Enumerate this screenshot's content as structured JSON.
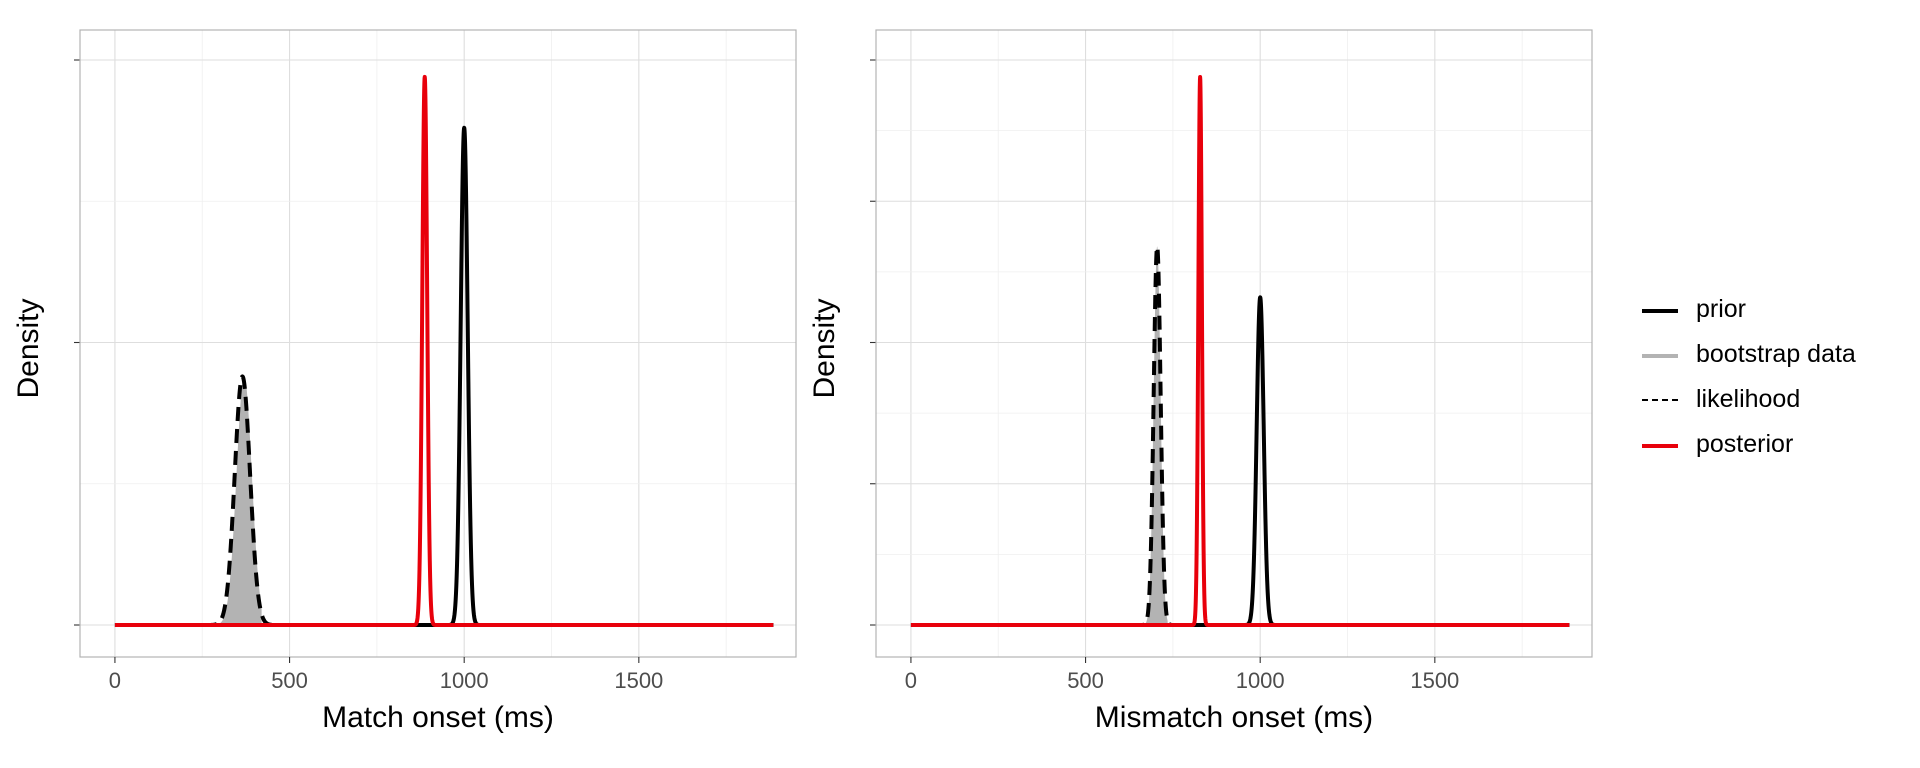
{
  "chart_data": [
    {
      "type": "line",
      "title": "",
      "xlabel": "Match onset (ms)",
      "ylabel": "Density",
      "xlim": [
        -100,
        1950
      ],
      "x_ticks": [
        0,
        500,
        1000,
        1500
      ],
      "x_tick_labels": [
        "0",
        "500",
        "1000",
        "1500"
      ],
      "y_tick_labels": [],
      "grid": true,
      "series": [
        {
          "name": "bootstrap data",
          "style": "area",
          "color": "#b3b3b3",
          "mean": 370,
          "sd": 22,
          "peak": 0.44,
          "xrange": [
            300,
            420
          ]
        },
        {
          "name": "likelihood",
          "style": "dashed",
          "color": "#000000",
          "mean": 365,
          "sd": 22,
          "peak": 0.44
        },
        {
          "name": "prior",
          "style": "solid",
          "color": "#000000",
          "mean": 1000,
          "sd": 10,
          "peak": 0.88
        },
        {
          "name": "posterior",
          "style": "solid",
          "color": "#e8000b",
          "mean": 887,
          "sd": 7,
          "peak": 0.97
        }
      ]
    },
    {
      "type": "line",
      "title": "",
      "xlabel": "Mismatch onset (ms)",
      "ylabel": "Density",
      "xlim": [
        -100,
        1950
      ],
      "x_ticks": [
        0,
        500,
        1000,
        1500
      ],
      "x_tick_labels": [
        "0",
        "500",
        "1000",
        "1500"
      ],
      "y_tick_labels": [],
      "grid": true,
      "series": [
        {
          "name": "bootstrap data",
          "style": "area",
          "color": "#b3b3b3",
          "mean": 705,
          "sd": 10,
          "peak": 0.67,
          "xrange": [
            670,
            735
          ]
        },
        {
          "name": "likelihood",
          "style": "dashed",
          "color": "#000000",
          "mean": 705,
          "sd": 10,
          "peak": 0.67
        },
        {
          "name": "prior",
          "style": "solid",
          "color": "#000000",
          "mean": 1000,
          "sd": 10,
          "peak": 0.58
        },
        {
          "name": "posterior",
          "style": "solid",
          "color": "#e8000b",
          "mean": 828,
          "sd": 5,
          "peak": 0.97
        }
      ]
    }
  ],
  "legend": {
    "placement": "right",
    "items": [
      {
        "label": "prior",
        "color": "#000000",
        "style": "solid"
      },
      {
        "label": "bootstrap data",
        "color": "#b3b3b3",
        "style": "solid"
      },
      {
        "label": "likelihood",
        "color": "#000000",
        "style": "dashed"
      },
      {
        "label": "posterior",
        "color": "#e8000b",
        "style": "solid"
      }
    ]
  }
}
